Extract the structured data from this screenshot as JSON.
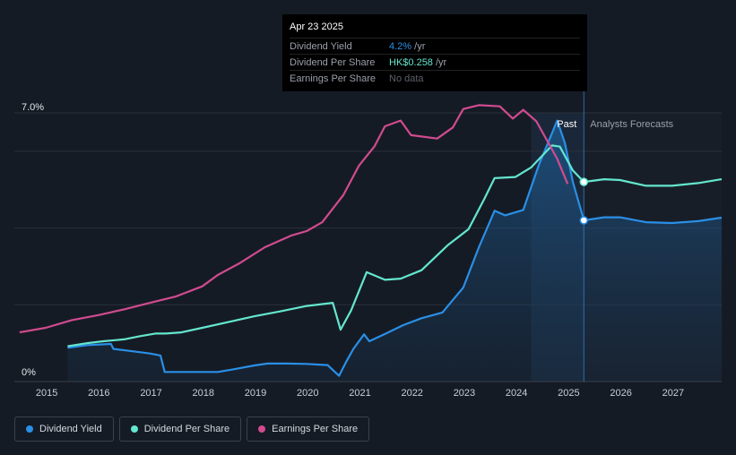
{
  "tooltip": {
    "date": "Apr 23 2025",
    "rows": [
      {
        "label": "Dividend Yield",
        "value": "4.2%",
        "unit": " /yr"
      },
      {
        "label": "Dividend Per Share",
        "value": "HK$0.258",
        "unit": " /yr"
      },
      {
        "label": "Earnings Per Share",
        "value": "No data"
      }
    ]
  },
  "legend": {
    "items": [
      {
        "label": "Dividend Yield",
        "color": "#2a8fe6"
      },
      {
        "label": "Dividend Per Share",
        "color": "#64e6cf"
      },
      {
        "label": "Earnings Per Share",
        "color": "#d14b8f"
      }
    ]
  },
  "colors": {
    "background": "#151b25",
    "grid": "#2a313c",
    "yield": "#2a8fe6",
    "dps": "#64e6cf",
    "eps": "#d14b8f",
    "past_band": "#1b2a3d"
  },
  "chart_data": {
    "type": "line",
    "title": "",
    "xlabel": "",
    "ylabel": "",
    "ylim": [
      0,
      7.0
    ],
    "xlim": [
      2014.4,
      2027.95
    ],
    "y_ticks": [
      "7.0%",
      "0%"
    ],
    "x_ticks": [
      "2015",
      "2016",
      "2017",
      "2018",
      "2019",
      "2020",
      "2021",
      "2022",
      "2023",
      "2024",
      "2025",
      "2026",
      "2027"
    ],
    "annotations": {
      "past": "Past",
      "forecast": "Analysts Forecasts",
      "divider_x": 2025.31,
      "band_start": 2024.3
    },
    "series": [
      {
        "name": "Dividend Yield",
        "unit": "%",
        "points": [
          [
            2015.42,
            0.88
          ],
          [
            2015.8,
            0.95
          ],
          [
            2016.25,
            0.98
          ],
          [
            2016.3,
            0.85
          ],
          [
            2016.6,
            0.8
          ],
          [
            2017.0,
            0.73
          ],
          [
            2017.2,
            0.68
          ],
          [
            2017.28,
            0.25
          ],
          [
            2017.5,
            0.25
          ],
          [
            2018.0,
            0.25
          ],
          [
            2018.3,
            0.25
          ],
          [
            2018.6,
            0.32
          ],
          [
            2019.0,
            0.42
          ],
          [
            2019.25,
            0.47
          ],
          [
            2019.6,
            0.47
          ],
          [
            2020.0,
            0.46
          ],
          [
            2020.4,
            0.43
          ],
          [
            2020.62,
            0.15
          ],
          [
            2020.75,
            0.5
          ],
          [
            2020.9,
            0.86
          ],
          [
            2021.1,
            1.23
          ],
          [
            2021.2,
            1.05
          ],
          [
            2021.5,
            1.24
          ],
          [
            2021.85,
            1.47
          ],
          [
            2022.2,
            1.65
          ],
          [
            2022.6,
            1.8
          ],
          [
            2023.0,
            2.45
          ],
          [
            2023.3,
            3.5
          ],
          [
            2023.6,
            4.45
          ],
          [
            2023.8,
            4.33
          ],
          [
            2024.15,
            4.47
          ],
          [
            2024.45,
            5.65
          ],
          [
            2024.8,
            6.8
          ],
          [
            2024.95,
            6.2
          ],
          [
            2025.1,
            5.2
          ],
          [
            2025.31,
            4.2
          ],
          [
            2025.7,
            4.28
          ],
          [
            2026.0,
            4.28
          ],
          [
            2026.5,
            4.15
          ],
          [
            2027.0,
            4.13
          ],
          [
            2027.5,
            4.18
          ],
          [
            2027.95,
            4.27
          ]
        ]
      },
      {
        "name": "Dividend Per Share",
        "unit": "HK$",
        "points": [
          [
            2015.42,
            0.92
          ],
          [
            2015.8,
            1.0
          ],
          [
            2016.1,
            1.05
          ],
          [
            2016.5,
            1.1
          ],
          [
            2016.8,
            1.18
          ],
          [
            2017.1,
            1.25
          ],
          [
            2017.3,
            1.25
          ],
          [
            2017.6,
            1.28
          ],
          [
            2018.0,
            1.4
          ],
          [
            2018.5,
            1.55
          ],
          [
            2019.0,
            1.7
          ],
          [
            2019.5,
            1.83
          ],
          [
            2020.0,
            1.97
          ],
          [
            2020.5,
            2.05
          ],
          [
            2020.65,
            1.35
          ],
          [
            2020.85,
            1.85
          ],
          [
            2021.15,
            2.85
          ],
          [
            2021.5,
            2.65
          ],
          [
            2021.8,
            2.68
          ],
          [
            2022.2,
            2.9
          ],
          [
            2022.7,
            3.55
          ],
          [
            2023.1,
            3.97
          ],
          [
            2023.4,
            4.75
          ],
          [
            2023.6,
            5.3
          ],
          [
            2024.0,
            5.33
          ],
          [
            2024.3,
            5.58
          ],
          [
            2024.7,
            6.15
          ],
          [
            2024.85,
            6.12
          ],
          [
            2025.1,
            5.5
          ],
          [
            2025.31,
            5.2
          ],
          [
            2025.7,
            5.27
          ],
          [
            2026.0,
            5.25
          ],
          [
            2026.5,
            5.1
          ],
          [
            2027.0,
            5.1
          ],
          [
            2027.5,
            5.17
          ],
          [
            2027.95,
            5.27
          ]
        ]
      },
      {
        "name": "Earnings Per Share",
        "unit": "HK$",
        "points": [
          [
            2014.5,
            1.28
          ],
          [
            2015.0,
            1.4
          ],
          [
            2015.5,
            1.6
          ],
          [
            2016.0,
            1.73
          ],
          [
            2016.5,
            1.88
          ],
          [
            2017.0,
            2.05
          ],
          [
            2017.5,
            2.22
          ],
          [
            2018.0,
            2.48
          ],
          [
            2018.3,
            2.78
          ],
          [
            2018.7,
            3.07
          ],
          [
            2019.2,
            3.5
          ],
          [
            2019.7,
            3.8
          ],
          [
            2020.0,
            3.92
          ],
          [
            2020.3,
            4.15
          ],
          [
            2020.7,
            4.85
          ],
          [
            2021.0,
            5.62
          ],
          [
            2021.3,
            6.13
          ],
          [
            2021.5,
            6.65
          ],
          [
            2021.8,
            6.8
          ],
          [
            2022.0,
            6.42
          ],
          [
            2022.5,
            6.33
          ],
          [
            2022.8,
            6.62
          ],
          [
            2023.0,
            7.1
          ],
          [
            2023.3,
            7.2
          ],
          [
            2023.7,
            7.17
          ],
          [
            2023.95,
            6.85
          ],
          [
            2024.15,
            7.08
          ],
          [
            2024.4,
            6.78
          ],
          [
            2024.8,
            5.8
          ],
          [
            2025.0,
            5.15
          ]
        ]
      }
    ]
  }
}
